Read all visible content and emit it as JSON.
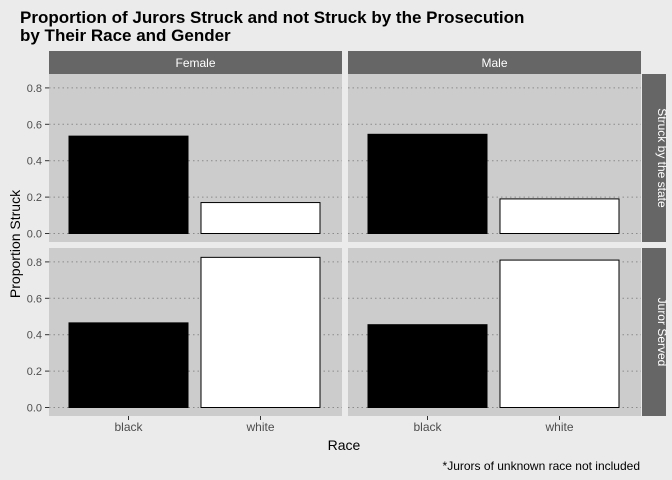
{
  "chart_data": {
    "type": "bar",
    "title_line1": "Proportion of Jurors Struck and not Struck by the Prosecution",
    "title_line2": "by Their Race and Gender",
    "xlabel": "Race",
    "ylabel": "Proportion Struck",
    "caption": "*Jurors of unknown race not included",
    "categories": [
      "black",
      "white"
    ],
    "col_facets": [
      "Female",
      "Male"
    ],
    "row_facets": [
      "Struck by the state",
      "Juror Served"
    ],
    "y_ticks": [
      "0.0",
      "0.2",
      "0.4",
      "0.6",
      "0.8"
    ],
    "ylim": [
      0,
      0.86
    ],
    "grid": "dotted",
    "bar_colors": {
      "black": "#000000",
      "white": "#ffffff"
    },
    "panels": [
      {
        "row": "Struck by the state",
        "col": "Female",
        "values": [
          0.535,
          0.17
        ]
      },
      {
        "row": "Struck by the state",
        "col": "Male",
        "values": [
          0.545,
          0.19
        ]
      },
      {
        "row": "Juror Served",
        "col": "Female",
        "values": [
          0.465,
          0.825
        ]
      },
      {
        "row": "Juror Served",
        "col": "Male",
        "values": [
          0.455,
          0.81
        ]
      }
    ]
  }
}
